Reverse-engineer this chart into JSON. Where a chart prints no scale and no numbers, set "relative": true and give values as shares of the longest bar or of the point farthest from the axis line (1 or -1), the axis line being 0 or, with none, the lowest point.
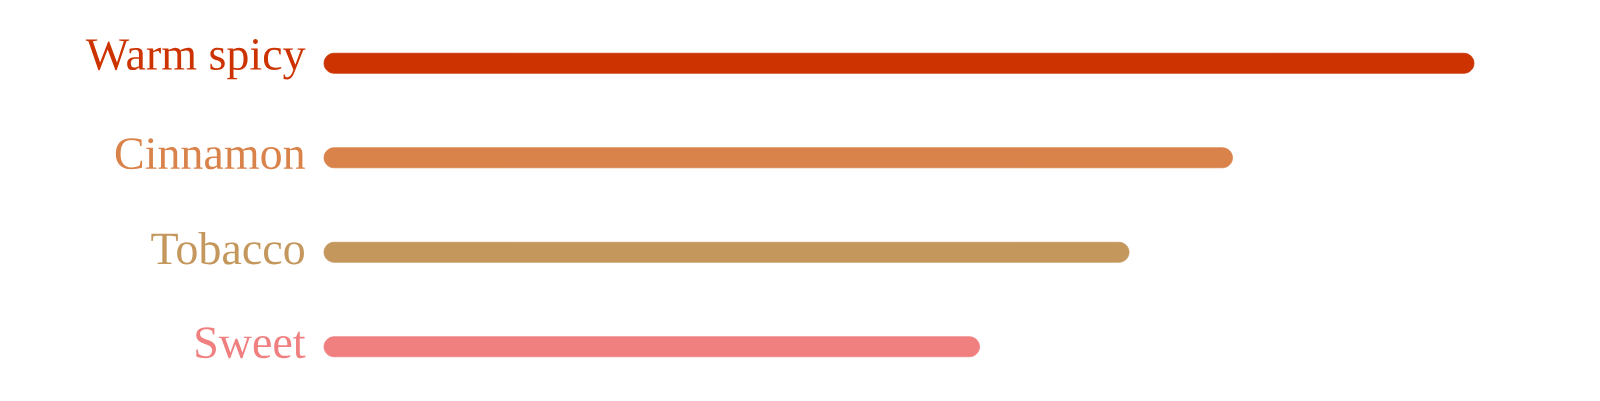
{
  "chart_data": {
    "type": "bar",
    "orientation": "horizontal",
    "relative": true,
    "categories": [
      "Warm spicy",
      "Cinnamon",
      "Tobacco",
      "Sweet"
    ],
    "values": [
      1,
      0.79,
      0.7,
      0.57
    ],
    "colors": [
      "#cc3300",
      "#d9824a",
      "#c4975d",
      "#f08080"
    ]
  }
}
